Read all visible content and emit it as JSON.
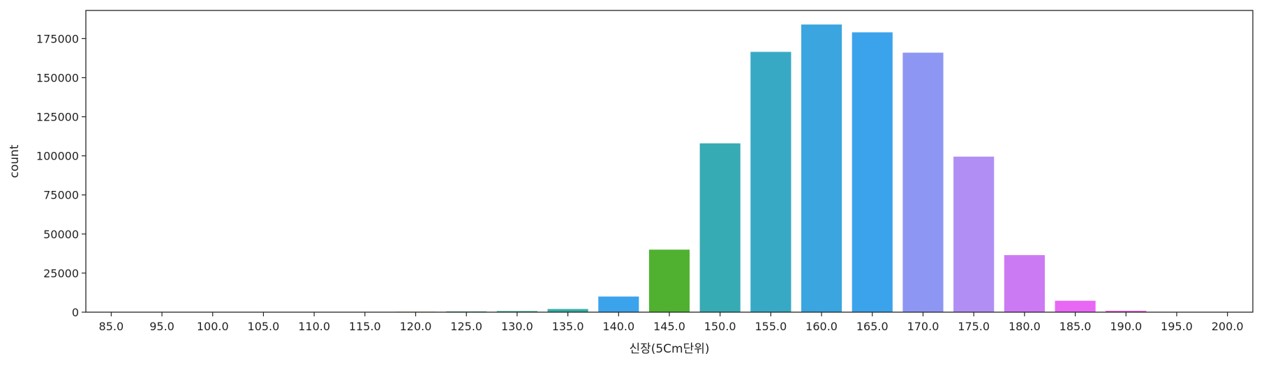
{
  "chart_data": {
    "type": "bar",
    "title": "",
    "xlabel": "신장(5Cm단위)",
    "ylabel": "count",
    "categories": [
      "85.0",
      "95.0",
      "100.0",
      "105.0",
      "110.0",
      "115.0",
      "120.0",
      "125.0",
      "130.0",
      "135.0",
      "140.0",
      "145.0",
      "150.0",
      "155.0",
      "160.0",
      "165.0",
      "170.0",
      "175.0",
      "180.0",
      "185.0",
      "190.0",
      "195.0",
      "200.0"
    ],
    "values": [
      10,
      10,
      20,
      40,
      80,
      150,
      300,
      500,
      700,
      2000,
      10000,
      40000,
      108000,
      166500,
      184000,
      179000,
      166000,
      99500,
      36500,
      7300,
      900,
      100,
      20
    ],
    "colors": [
      "#f77189",
      "#f7754f",
      "#dc8932",
      "#c39532",
      "#ae9d31",
      "#97a431",
      "#77ab31",
      "#33b07a",
      "#34ae91",
      "#36ada4",
      "#3ba3ec",
      "#50b131",
      "#37abb4",
      "#38a9c5",
      "#3aa5df",
      "#3ba3ec",
      "#8e96f4",
      "#b18ef4",
      "#cc7af4",
      "#e867f4",
      "#f461dd",
      "#f565cc",
      "#f66bbb"
    ],
    "ylim": [
      0,
      193000
    ],
    "yticks": [
      0,
      25000,
      50000,
      75000,
      100000,
      125000,
      150000,
      175000
    ],
    "grid": false,
    "legend": "none"
  }
}
